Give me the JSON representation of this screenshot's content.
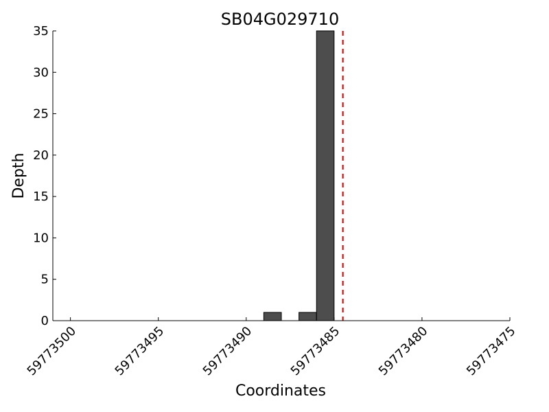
{
  "chart_data": {
    "type": "bar",
    "title": "SB04G029710",
    "xlabel": "Coordinates",
    "ylabel": "Depth",
    "x_reversed": true,
    "xlim": [
      59773501,
      59773475
    ],
    "ylim": [
      0,
      35
    ],
    "x_ticks": [
      59773500,
      59773495,
      59773490,
      59773485,
      59773480,
      59773475
    ],
    "x_tick_labels": [
      "59773500",
      "59773495",
      "59773490",
      "59773485",
      "59773480",
      "59773475"
    ],
    "y_ticks": [
      0,
      5,
      10,
      15,
      20,
      25,
      30,
      35
    ],
    "y_tick_labels": [
      "0",
      "5",
      "10",
      "15",
      "20",
      "25",
      "30",
      "35"
    ],
    "grid": false,
    "bar_width": 1,
    "bars": [
      {
        "x": 59773488,
        "value": 1
      },
      {
        "x": 59773486,
        "value": 1
      },
      {
        "x": 59773485,
        "value": 35
      }
    ],
    "marker_line": {
      "x": 59773484.5,
      "style": "dashed"
    },
    "colors": {
      "bar_fill": "#4d4d4d",
      "bar_edge": "#000000",
      "marker_line": "#cc0000",
      "axis": "#000000"
    }
  }
}
